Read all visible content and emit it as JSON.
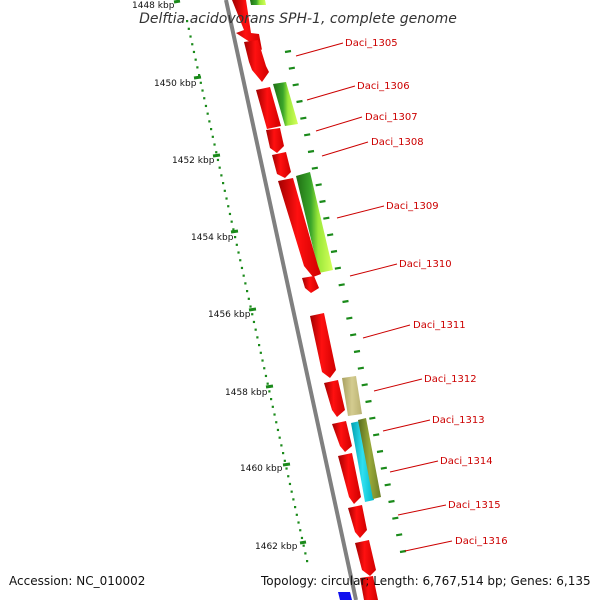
{
  "title": "Delftia acidovorans SPH-1, complete genome",
  "footer": {
    "accession": "Accession: NC_010002",
    "summary": "Topology: circular; Length: 6,767,514 bp; Genes: 6,135"
  },
  "ruler": {
    "unit": "kbp",
    "labels": [
      "1448 kbp",
      "1450 kbp",
      "1452 kbp",
      "1454 kbp",
      "1456 kbp",
      "1458 kbp",
      "1460 kbp",
      "1462 kbp"
    ]
  },
  "genes": [
    {
      "name": "Daci_1305"
    },
    {
      "name": "Daci_1306"
    },
    {
      "name": "Daci_1307"
    },
    {
      "name": "Daci_1308"
    },
    {
      "name": "Daci_1309"
    },
    {
      "name": "Daci_1310"
    },
    {
      "name": "Daci_1311"
    },
    {
      "name": "Daci_1312"
    },
    {
      "name": "Daci_1313"
    },
    {
      "name": "Daci_1314"
    },
    {
      "name": "Daci_1315"
    },
    {
      "name": "Daci_1316"
    }
  ],
  "colors": {
    "cds": "#ff0000",
    "backbone": "#808080",
    "ruler_ticks": "#1a8a1a",
    "label_text": "#cc0000",
    "gc_skew": [
      "#2e8b1e",
      "#adff2f",
      "#c8c080",
      "#00c8d8",
      "#6b8e23"
    ]
  }
}
